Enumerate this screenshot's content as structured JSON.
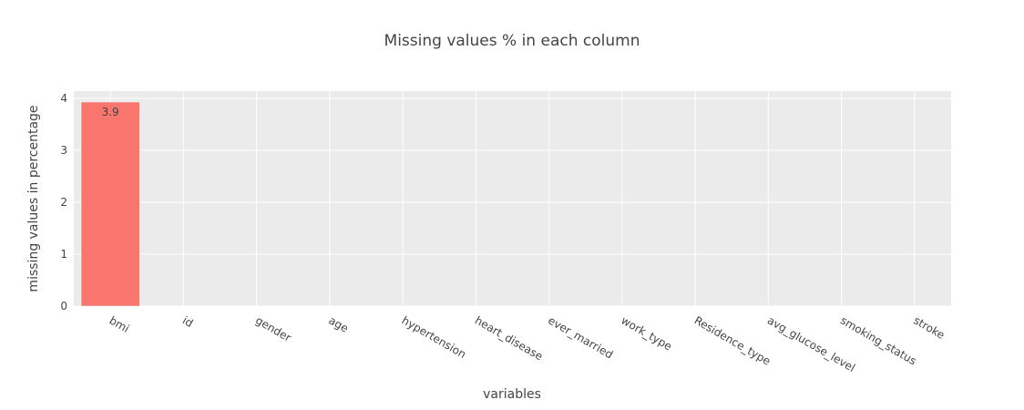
{
  "chart_data": {
    "type": "bar",
    "title": "Missing values % in each column",
    "xlabel": "variables",
    "ylabel": "missing values in percentage",
    "categories": [
      "bmi",
      "id",
      "gender",
      "age",
      "hypertension",
      "heart_disease",
      "ever_married",
      "work_type",
      "Residence_type",
      "avg_glucose_level",
      "smoking_status",
      "stroke"
    ],
    "values": [
      3.93,
      0,
      0,
      0,
      0,
      0,
      0,
      0,
      0,
      0,
      0,
      0
    ],
    "data_labels": [
      "3.9",
      "",
      "",
      "",
      "",
      "",
      "",
      "",
      "",
      "",
      "",
      ""
    ],
    "ylim": [
      0,
      4.14
    ],
    "yticks": [
      "0",
      "1",
      "2",
      "3",
      "4"
    ],
    "grid": true,
    "bar_color": "#f8766d",
    "plot_background": "#ebebeb"
  }
}
